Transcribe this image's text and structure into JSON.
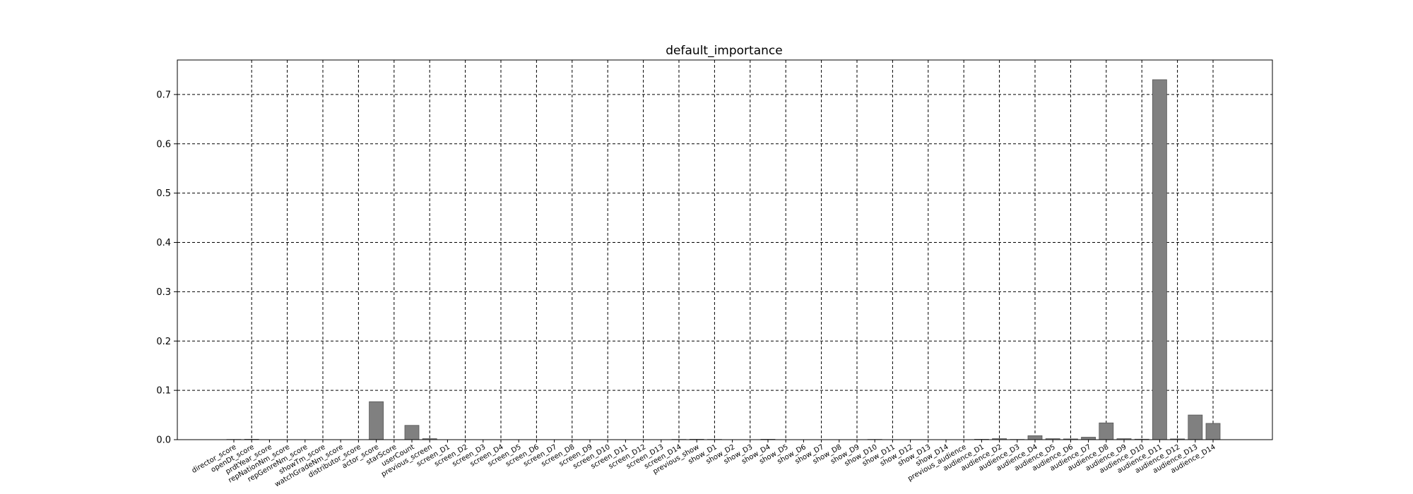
{
  "chart_data": {
    "type": "bar",
    "title": "default_importance",
    "xlabel": "",
    "ylabel": "",
    "ylim": [
      0,
      0.77
    ],
    "yticks": [
      0.0,
      0.1,
      0.2,
      0.3,
      0.4,
      0.5,
      0.6,
      0.7
    ],
    "ytick_labels": [
      "0.0",
      "0.1",
      "0.2",
      "0.3",
      "0.4",
      "0.5",
      "0.6",
      "0.7"
    ],
    "grid": true,
    "bar_color": "#808080",
    "categories": [
      "director_score",
      "openDt_score",
      "prdtYear_score",
      "repNationNm_score",
      "repGenreNm_score",
      "showTm_score",
      "watchGradeNm_score",
      "distributor_score",
      "actor_score",
      "starScore",
      "userCount",
      "previous_screen",
      "screen_D1",
      "screen_D2",
      "screen_D3",
      "screen_D4",
      "screen_D5",
      "screen_D6",
      "screen_D7",
      "screen_D8",
      "screen_D9",
      "screen_D10",
      "screen_D11",
      "screen_D12",
      "screen_D13",
      "screen_D14",
      "previous_show",
      "show_D1",
      "show_D2",
      "show_D3",
      "show_D4",
      "show_D5",
      "show_D6",
      "show_D7",
      "show_D8",
      "show_D9",
      "show_D10",
      "show_D11",
      "show_D12",
      "show_D13",
      "show_D14",
      "previous_audience",
      "audience_D1",
      "audience_D2",
      "audience_D3",
      "audience_D4",
      "audience_D5",
      "audience_D6",
      "audience_D7",
      "audience_D8",
      "audience_D9",
      "audience_D10",
      "audience_D11",
      "audience_D12",
      "audience_D13",
      "audience_D14"
    ],
    "values": [
      0.0005,
      0.0008,
      0.0,
      0.0,
      0.0,
      0.0,
      0.0,
      0.0,
      0.077,
      0.0,
      0.029,
      0.002,
      0.0,
      0.0,
      0.0,
      0.0,
      0.0,
      0.0,
      0.0,
      0.0,
      0.0,
      0.0,
      0.0,
      0.0,
      0.0,
      0.0005,
      0.0008,
      0.0005,
      0.0,
      0.0,
      0.0008,
      0.0,
      0.0,
      0.0,
      0.0,
      0.0,
      0.0005,
      0.0,
      0.0,
      0.0,
      0.0,
      0.0,
      0.0008,
      0.002,
      0.0005,
      0.008,
      0.002,
      0.0015,
      0.005,
      0.034,
      0.002,
      0.001,
      0.73,
      0.0015,
      0.05,
      0.033
    ]
  }
}
